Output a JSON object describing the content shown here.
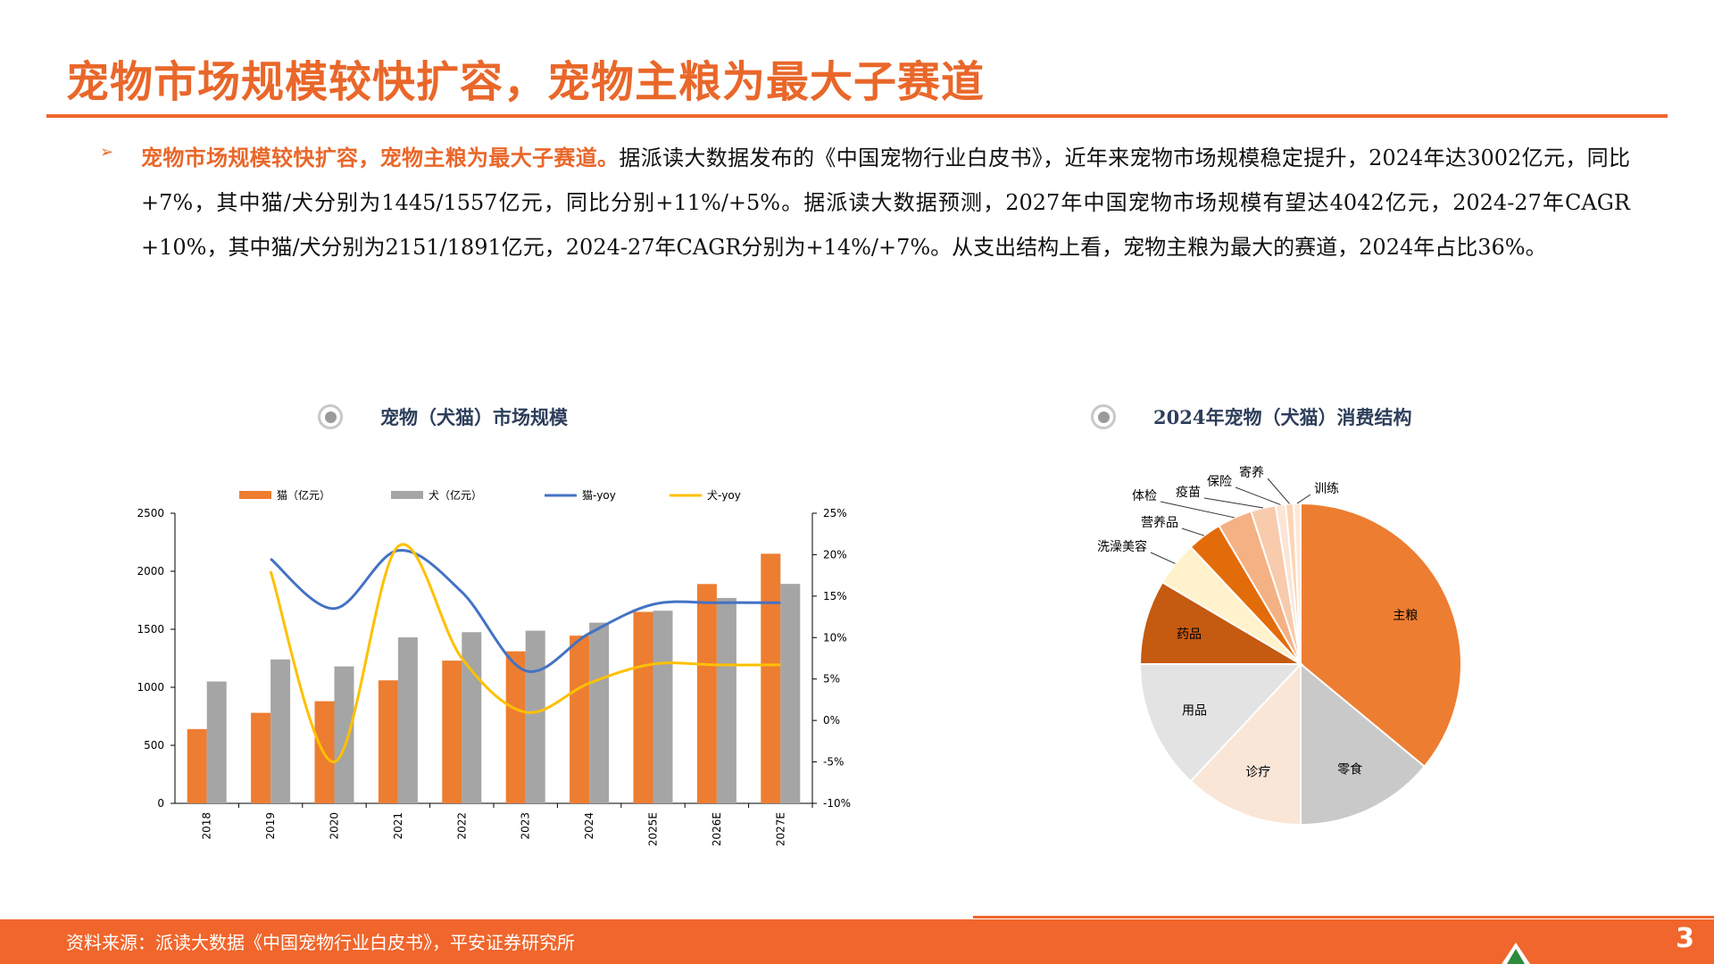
{
  "title": "宠物市场规模较快扩容，宠物主粮为最大子赛道",
  "bullet": "➢",
  "paragraph": {
    "highlight": "宠物市场规模较快扩容，宠物主粮为最大子赛道。",
    "body": "据派读大数据发布的《中国宠物行业白皮书》，近年来宠物市场规模稳定提升，2024年达3002亿元，同比+7%，其中猫/犬分别为1445/1557亿元，同比分别+11%/+5%。据派读大数据预测，2027年中国宠物市场规模有望达4042亿元，2024-27年CAGR +10%，其中猫/犬分别为2151/1891亿元，2024-27年CAGR分别为+14%/+7%。从支出结构上看，宠物主粮为最大的赛道，2024年占比36%。"
  },
  "left_chart_title": "宠物（犬猫）市场规模",
  "right_chart_title": "2024年宠物（犬猫）消费结构",
  "footer": {
    "source": "资料来源：派读大数据《中国宠物行业白皮书》，平安证券研究所",
    "page": "3"
  },
  "colors": {
    "accent": "#f0662c",
    "cat": "#ed7d31",
    "dog": "#a5a5a5",
    "cat_yoy": "#4472c4",
    "dog_yoy": "#ffc000"
  },
  "chart_data": [
    {
      "type": "bar",
      "title": "宠物（犬猫）市场规模",
      "categories": [
        "2018",
        "2019",
        "2020",
        "2021",
        "2022",
        "2023",
        "2024",
        "2025E",
        "2026E",
        "2027E"
      ],
      "series": [
        {
          "name": "猫（亿元）",
          "type": "bar",
          "axis": "left",
          "values": [
            640,
            780,
            880,
            1060,
            1230,
            1310,
            1445,
            1650,
            1890,
            2151
          ]
        },
        {
          "name": "犬（亿元）",
          "type": "bar",
          "axis": "left",
          "values": [
            1050,
            1240,
            1180,
            1430,
            1475,
            1488,
            1557,
            1660,
            1770,
            1891
          ]
        },
        {
          "name": "猫-yoy",
          "type": "line",
          "axis": "right",
          "values": [
            null,
            0.195,
            0.135,
            0.205,
            0.155,
            0.06,
            0.105,
            0.14,
            0.142,
            0.142
          ]
        },
        {
          "name": "犬-yoy",
          "type": "line",
          "axis": "right",
          "values": [
            null,
            0.18,
            -0.05,
            0.21,
            0.075,
            0.01,
            0.045,
            0.068,
            0.067,
            0.067
          ]
        }
      ],
      "ylim_left": [
        0,
        2500
      ],
      "left_ticks": [
        "0",
        "500",
        "1000",
        "1500",
        "2000",
        "2500"
      ],
      "ylim_right": [
        -0.1,
        0.25
      ],
      "right_ticks": [
        "-10%",
        "-5%",
        "0%",
        "5%",
        "10%",
        "15%",
        "20%",
        "25%"
      ],
      "legend": "top"
    },
    {
      "type": "pie",
      "title": "2024年宠物（犬猫）消费结构",
      "slices": [
        {
          "label": "主粮",
          "value": 36,
          "color": "#ed7d31"
        },
        {
          "label": "零食",
          "value": 14,
          "color": "#c9c9c9"
        },
        {
          "label": "诊疗",
          "value": 12,
          "color": "#fae6d6"
        },
        {
          "label": "用品",
          "value": 13,
          "color": "#e3e3e3"
        },
        {
          "label": "药品",
          "value": 8.5,
          "color": "#c55a11"
        },
        {
          "label": "洗澡美容",
          "value": 4.5,
          "color": "#fff2cc"
        },
        {
          "label": "营养品",
          "value": 3.5,
          "color": "#e36c0a"
        },
        {
          "label": "体检",
          "value": 3.5,
          "color": "#f4b183"
        },
        {
          "label": "疫苗",
          "value": 2.5,
          "color": "#f8cbad"
        },
        {
          "label": "保险",
          "value": 1,
          "color": "#fbe5d6"
        },
        {
          "label": "寄养",
          "value": 0.8,
          "color": "#fcd5b4"
        },
        {
          "label": "训练",
          "value": 0.7,
          "color": "#fde9d9"
        }
      ]
    }
  ]
}
